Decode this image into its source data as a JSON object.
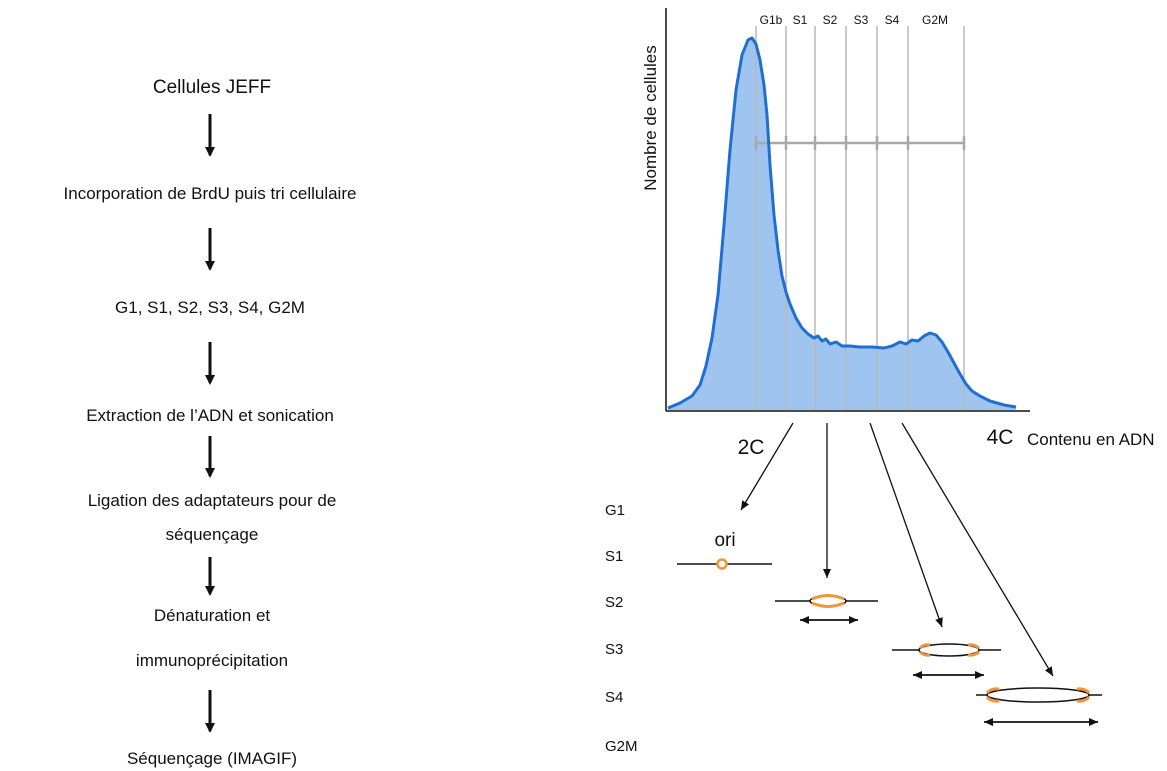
{
  "workflow": {
    "steps": [
      "Cellules JEFF",
      "Incorporation de BrdU puis tri cellulaire",
      "G1, S1, S2, S3, S4, G2M",
      "Extraction de l’ADN et sonication",
      "Ligation des adaptateurs pour de",
      "séquençage",
      "Dénaturation et",
      "immunoprécipitation",
      "Séquençage (IMAGIF)"
    ]
  },
  "histogram": {
    "ylabel": "Nombre de cellules",
    "xlabel": "Contenu en ADN",
    "tick_2c": "2C",
    "tick_4c": "4C",
    "gates": [
      "G1b",
      "S1",
      "S2",
      "S3",
      "S4",
      "G2M"
    ],
    "fill_color": "#9ec4ef",
    "line_color": "#1f6fd1"
  },
  "replication": {
    "phases": [
      "G1",
      "S1",
      "S2",
      "S3",
      "S4",
      "G2M"
    ],
    "ori_label": "ori",
    "ori_color": "#f0953a"
  }
}
